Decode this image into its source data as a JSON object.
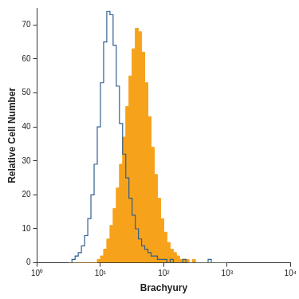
{
  "chart_data": {
    "type": "histogram",
    "xlabel": "Brachyury",
    "ylabel": "Relative Cell Number",
    "bins": [
      3.162,
      3.548,
      3.981,
      4.467,
      5.012,
      5.623,
      6.31,
      7.079,
      7.943,
      8.913,
      10,
      11.22,
      12.59,
      14.13,
      15.85,
      17.78,
      19.95,
      22.39,
      25.12,
      28.18,
      31.62,
      35.48,
      39.81,
      44.67,
      50.12,
      56.23,
      63.1,
      70.79,
      79.43,
      89.13,
      100,
      112.2,
      125.9,
      141.3,
      158.5,
      177.8,
      199.5,
      223.9,
      251.2,
      281.8,
      316.2,
      354.8,
      398.1,
      446.7,
      501.2,
      562.3,
      631,
      707.9,
      794.3,
      891.3,
      1000
    ],
    "series": [
      {
        "type": "step",
        "color": "#2f5f8f",
        "values": [
          0,
          0,
          1,
          2,
          3,
          5,
          8,
          13,
          20,
          29,
          40,
          53,
          65,
          74,
          73,
          64,
          52,
          41,
          32,
          25,
          19,
          14,
          10,
          7,
          5,
          4,
          3,
          2,
          2,
          1,
          1,
          1,
          0,
          1,
          0,
          0,
          0,
          1,
          0,
          0,
          0,
          0,
          0,
          0,
          0,
          1,
          0,
          0,
          0,
          0
        ]
      },
      {
        "type": "area",
        "color": "#f7a21b",
        "values": [
          0,
          0,
          0,
          0,
          0,
          0,
          0,
          0,
          0,
          0,
          1,
          2,
          4,
          7,
          11,
          16,
          22,
          29,
          37,
          46,
          55,
          63,
          69,
          68,
          62,
          53,
          43,
          34,
          26,
          19,
          13,
          9,
          6,
          4,
          3,
          2,
          1,
          1,
          1,
          0,
          1,
          0,
          0,
          0,
          0,
          0,
          0,
          0,
          0,
          0
        ]
      }
    ],
    "log": "x",
    "xlim": [
      1,
      10000
    ],
    "xticks": [
      {
        "value": 1,
        "label": "10⁰"
      },
      {
        "value": 10,
        "label": "10¹"
      },
      {
        "value": 100,
        "label": "10²"
      },
      {
        "value": 1000,
        "label": "10³"
      },
      {
        "value": 10000,
        "label": "10⁴"
      }
    ],
    "ylim": [
      0,
      75
    ],
    "yticks": [
      0,
      10,
      20,
      30,
      40,
      50,
      60,
      70
    ],
    "grid": false
  }
}
